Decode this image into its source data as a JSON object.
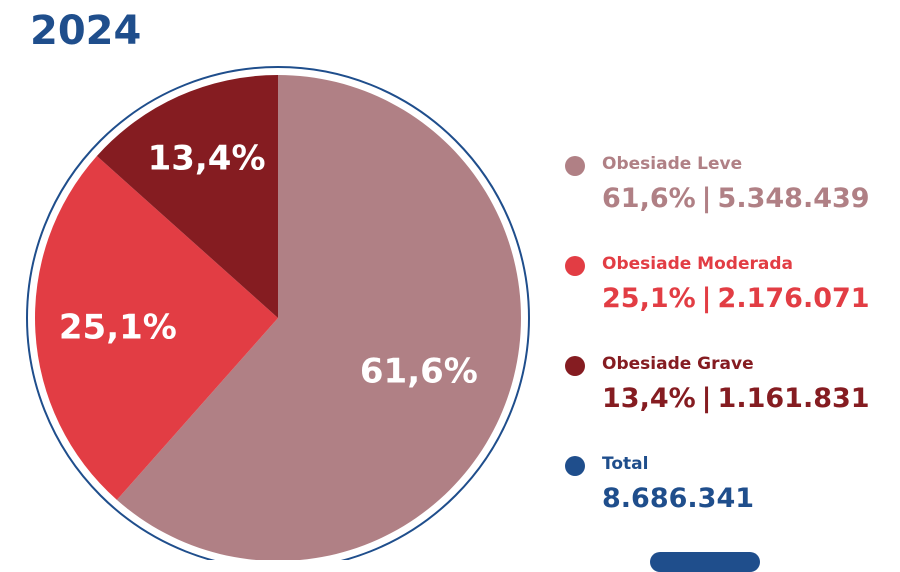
{
  "header": {
    "year": "2024"
  },
  "chart_data": {
    "type": "pie",
    "slices": [
      {
        "name": "Obesiade Leve",
        "percent": 61.6,
        "label": "61,6%",
        "count": "5.348.439",
        "color": "#b08085"
      },
      {
        "name": "Obesiade Moderada",
        "percent": 25.1,
        "label": "25,1%",
        "count": "2.176.071",
        "color": "#e23d44"
      },
      {
        "name": "Obesiade Grave",
        "percent": 13.4,
        "label": "13,4%",
        "count": "1.161.831",
        "color": "#851c21"
      }
    ],
    "total": {
      "name": "Total",
      "value": "8.686.341",
      "color": "#1f4e8c"
    }
  },
  "colors": {
    "accent": "#1f4e8c",
    "ring": "#1f4e8c",
    "background": "#ffffff"
  }
}
